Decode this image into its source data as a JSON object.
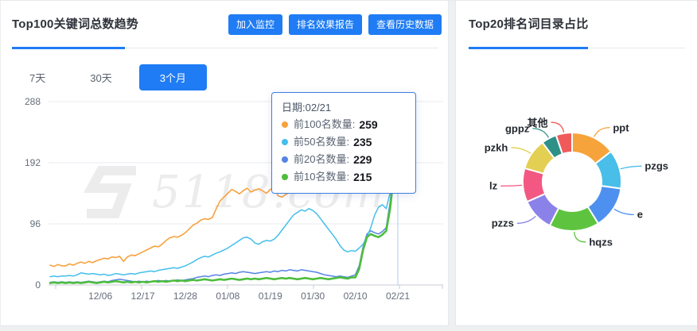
{
  "accent_blue": "#1f7cf4",
  "left_panel": {
    "title": "Top100关键词总数趋势",
    "buttons": [
      "加入监控",
      "排名效果报告",
      "查看历史数据"
    ],
    "tabs": [
      {
        "label": "7天",
        "active": false
      },
      {
        "label": "30天",
        "active": false
      },
      {
        "label": "3个月",
        "active": true
      }
    ],
    "watermark": "5118.com",
    "tooltip": {
      "date": "日期:02/21",
      "items": [
        {
          "label": "前100名数量:",
          "value": "259",
          "color": "#f8a23d"
        },
        {
          "label": "前50名数量:",
          "value": "235",
          "color": "#44beec"
        },
        {
          "label": "前20名数量:",
          "value": "229",
          "color": "#5584e4"
        },
        {
          "label": "前10名数量:",
          "value": "215",
          "color": "#4ebd3e"
        }
      ]
    }
  },
  "right_panel": {
    "title": "Top20排名词目录占比"
  },
  "chart_data": [
    {
      "type": "line",
      "title": "Top100关键词总数趋势",
      "ylim": [
        0,
        288
      ],
      "y_ticks": [
        288,
        192,
        96,
        0
      ],
      "grid": true,
      "x_labels": [
        "12/06",
        "12/17",
        "12/28",
        "01/08",
        "01/19",
        "01/30",
        "02/10",
        "02/21"
      ],
      "x_label_indices": [
        13,
        24,
        35,
        46,
        57,
        68,
        79,
        90
      ],
      "hover": {
        "index": 90,
        "date": "02/21"
      },
      "series": [
        {
          "name": "前20名数量",
          "color": "#5584e4",
          "width": 1.5,
          "end_value": 229,
          "values": [
            4,
            5,
            4,
            5,
            4,
            5,
            4,
            5,
            4,
            5,
            6,
            5,
            4,
            5,
            6,
            5,
            7,
            8,
            9,
            8,
            7,
            6,
            5,
            6,
            5,
            6,
            5,
            6,
            7,
            6,
            7,
            6,
            7,
            8,
            7,
            8,
            9,
            10,
            12,
            13,
            14,
            13,
            15,
            16,
            15,
            17,
            18,
            19,
            18,
            20,
            21,
            20,
            19,
            18,
            19,
            20,
            21,
            20,
            22,
            21,
            23,
            22,
            24,
            23,
            22,
            24,
            23,
            22,
            21,
            20,
            18,
            16,
            15,
            14,
            13,
            14,
            13,
            12,
            14,
            16,
            30,
            60,
            80,
            85,
            82,
            80,
            84,
            90,
            130,
            185,
            229
          ]
        },
        {
          "name": "前50名数量",
          "color": "#44beec",
          "width": 1.5,
          "end_value": 235,
          "values": [
            13,
            14,
            13,
            14,
            14,
            15,
            14,
            16,
            19,
            18,
            17,
            18,
            17,
            16,
            17,
            15,
            16,
            18,
            17,
            16,
            17,
            18,
            17,
            19,
            20,
            21,
            22,
            21,
            23,
            24,
            25,
            26,
            27,
            26,
            28,
            30,
            33,
            36,
            40,
            43,
            45,
            44,
            47,
            50,
            52,
            55,
            58,
            62,
            66,
            70,
            74,
            75,
            72,
            66,
            64,
            68,
            70,
            69,
            72,
            78,
            86,
            94,
            102,
            110,
            114,
            118,
            116,
            120,
            117,
            112,
            104,
            96,
            88,
            80,
            72,
            62,
            55,
            52,
            54,
            53,
            58,
            64,
            76,
            90,
            110,
            122,
            126,
            120,
            145,
            190,
            235
          ]
        },
        {
          "name": "前10名数量",
          "color": "#4ebd3e",
          "width": 2.6,
          "end_value": 215,
          "values": [
            3,
            4,
            3,
            4,
            3,
            4,
            3,
            4,
            3,
            4,
            5,
            4,
            3,
            4,
            5,
            4,
            5,
            6,
            5,
            4,
            5,
            4,
            5,
            4,
            5,
            4,
            5,
            6,
            5,
            6,
            5,
            6,
            7,
            6,
            7,
            6,
            7,
            8,
            7,
            8,
            9,
            8,
            7,
            8,
            9,
            8,
            9,
            10,
            9,
            8,
            9,
            10,
            9,
            10,
            9,
            10,
            11,
            10,
            9,
            10,
            11,
            10,
            11,
            10,
            9,
            10,
            11,
            10,
            9,
            10,
            11,
            10,
            9,
            10,
            11,
            12,
            11,
            10,
            12,
            12,
            25,
            55,
            75,
            80,
            77,
            75,
            79,
            85,
            120,
            175,
            215
          ]
        },
        {
          "name": "前100名数量",
          "color": "#f8a23d",
          "width": 1.6,
          "end_value": 259,
          "values": [
            31,
            29,
            32,
            30,
            30,
            33,
            31,
            34,
            36,
            34,
            37,
            35,
            38,
            40,
            42,
            41,
            44,
            43,
            45,
            37,
            44,
            47,
            46,
            49,
            52,
            55,
            58,
            61,
            60,
            64,
            70,
            74,
            76,
            75,
            78,
            82,
            88,
            94,
            97,
            102,
            104,
            103,
            106,
            120,
            132,
            138,
            144,
            150,
            147,
            143,
            148,
            152,
            146,
            149,
            151,
            148,
            144,
            150,
            153,
            140,
            138,
            142,
            146,
            158,
            170,
            184,
            196,
            205,
            212,
            220,
            226,
            222,
            215,
            222,
            225,
            218,
            213,
            216,
            214,
            212,
            214,
            211,
            208,
            204,
            200,
            197,
            195,
            205,
            225,
            245,
            259
          ]
        }
      ]
    },
    {
      "type": "pie",
      "title": "Top20排名词目录占比",
      "donut": true,
      "slices": [
        {
          "label": "ppt",
          "value": 52,
          "color": "#f6a33b"
        },
        {
          "label": "pzgs",
          "value": 46,
          "color": "#48bee8"
        },
        {
          "label": "e",
          "value": 50,
          "color": "#4e90ef"
        },
        {
          "label": "hqzs",
          "value": 59,
          "color": "#5ec43f"
        },
        {
          "label": "pzzs",
          "value": 39,
          "color": "#8b82e9"
        },
        {
          "label": "lz",
          "value": 40,
          "color": "#f25881"
        },
        {
          "label": "pzkh",
          "value": 37,
          "color": "#e3cf52"
        },
        {
          "label": "gppz",
          "value": 18,
          "color": "#2e9188"
        },
        {
          "label": "其他",
          "value": 19,
          "color": "#f05a5a"
        }
      ]
    }
  ]
}
